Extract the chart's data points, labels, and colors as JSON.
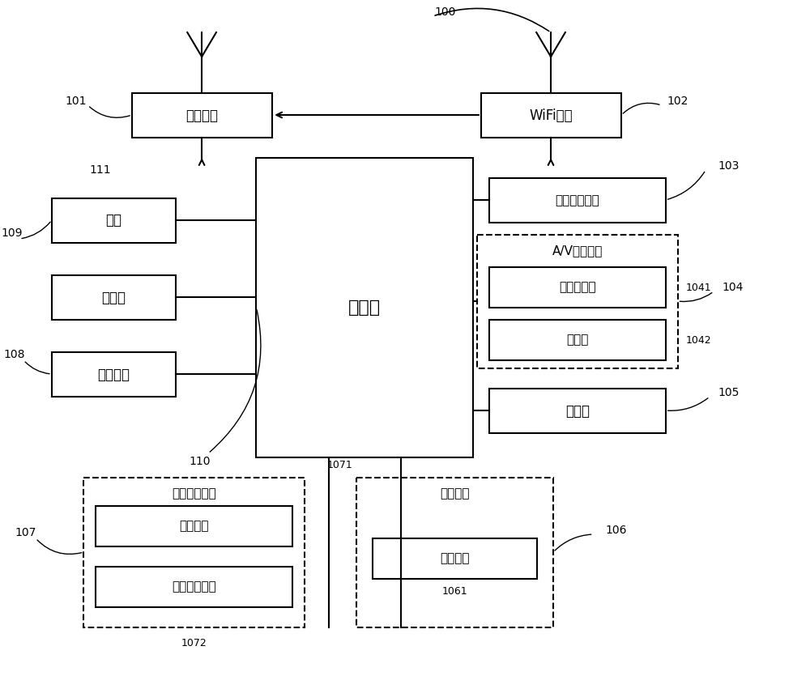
{
  "bg_color": "#ffffff",
  "text_rf": "射频单元",
  "text_wifi": "WiFi模块",
  "text_processor": "处理器",
  "text_power": "电源",
  "text_storage": "存储器",
  "text_interface": "接口单元",
  "text_audio": "音频输出单元",
  "text_av": "A/V输入单元",
  "text_gpu": "图形处理器",
  "text_mic": "麦克风",
  "text_sensor": "传感器",
  "text_user_input": "用户输入单元",
  "text_touch": "触控面板",
  "text_other_input": "其他输入设备",
  "text_display_unit": "显示单元",
  "text_display_panel": "显示面板",
  "label_100": "100",
  "label_101": "101",
  "label_102": "102",
  "label_103": "103",
  "label_104": "104",
  "label_105": "105",
  "label_106": "106",
  "label_107": "107",
  "label_108": "108",
  "label_109": "109",
  "label_110": "110",
  "label_111": "111",
  "label_1041": "1041",
  "label_1042": "1042",
  "label_1061": "1061",
  "label_1071": "1071",
  "label_1072": "1072"
}
